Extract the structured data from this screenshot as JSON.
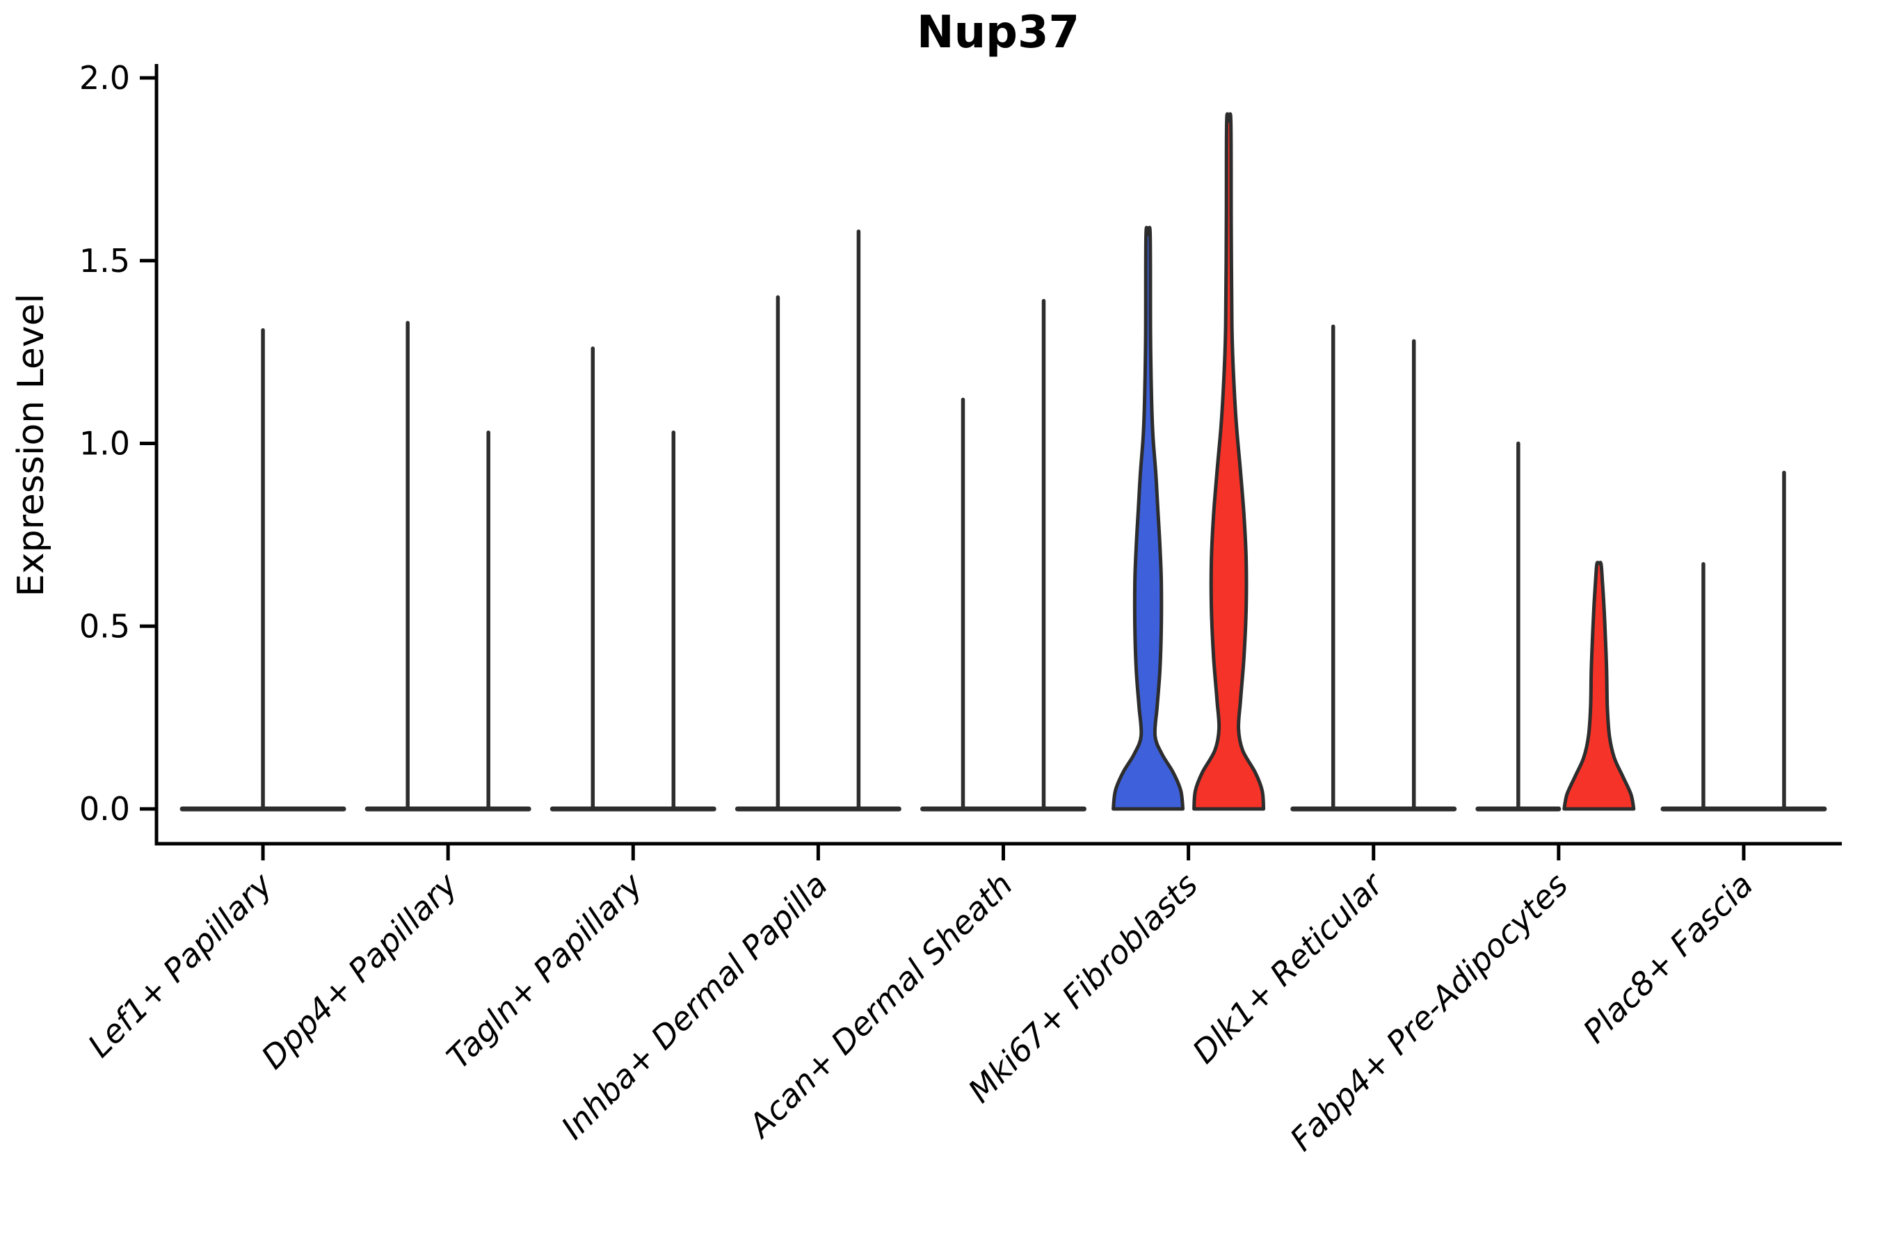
{
  "chart_data": {
    "type": "violin",
    "title": "Nup37",
    "xlabel": "",
    "ylabel": "Expression Level",
    "ylim": [
      0.0,
      2.0
    ],
    "yticks": [
      "0.0",
      "0.5",
      "1.0",
      "1.5",
      "2.0"
    ],
    "ytick_values": [
      0.0,
      0.5,
      1.0,
      1.5,
      2.0
    ],
    "legend": "none",
    "grid": false,
    "categories": [
      "Lef1+ Papillary",
      "Dpp4+ Papillary",
      "Tagln+ Papillary",
      "Inhba+ Dermal Papilla",
      "Acan+ Dermal Sheath",
      "Mki67+ Fibroblasts",
      "Dlk1+ Reticular",
      "Fabp4+ Pre-Adipocytes",
      "Plac8+ Fascia"
    ],
    "colors": {
      "outline": "#2d2d2d",
      "spike": "#2d2d2d",
      "axis": "#000000",
      "blue_fill": "#3e61db",
      "red_fill": "#f63328"
    },
    "groups": [
      {
        "category": "Lef1+ Papillary",
        "violins": [
          {
            "position": "center",
            "style": "spike",
            "height": 1.31,
            "fill": "none",
            "width_scale": 2
          }
        ]
      },
      {
        "category": "Dpp4+ Papillary",
        "violins": [
          {
            "position": "left",
            "style": "spike",
            "height": 1.33,
            "fill": "none",
            "width_scale": 1
          },
          {
            "position": "right",
            "style": "spike",
            "height": 1.03,
            "fill": "none",
            "width_scale": 1
          }
        ]
      },
      {
        "category": "Tagln+ Papillary",
        "violins": [
          {
            "position": "left",
            "style": "spike",
            "height": 1.26,
            "fill": "none",
            "width_scale": 1
          },
          {
            "position": "right",
            "style": "spike",
            "height": 1.03,
            "fill": "none",
            "width_scale": 1
          }
        ]
      },
      {
        "category": "Inhba+ Dermal Papilla",
        "violins": [
          {
            "position": "left",
            "style": "spike",
            "height": 1.4,
            "fill": "none",
            "width_scale": 1
          },
          {
            "position": "right",
            "style": "spike",
            "height": 1.58,
            "fill": "none",
            "width_scale": 1
          }
        ]
      },
      {
        "category": "Acan+ Dermal Sheath",
        "violins": [
          {
            "position": "left",
            "style": "spike",
            "height": 1.12,
            "fill": "none",
            "width_scale": 1
          },
          {
            "position": "right",
            "style": "spike",
            "height": 1.39,
            "fill": "none",
            "width_scale": 1
          }
        ]
      },
      {
        "category": "Mki67+ Fibroblasts",
        "violins": [
          {
            "position": "left",
            "style": "filled",
            "height": 1.57,
            "fill": "#3e61db",
            "width_scale": 1,
            "profile": [
              [
                0.0,
                50
              ],
              [
                0.05,
                47
              ],
              [
                0.1,
                36
              ],
              [
                0.15,
                20
              ],
              [
                0.2,
                10
              ],
              [
                0.28,
                13
              ],
              [
                0.38,
                17
              ],
              [
                0.5,
                19
              ],
              [
                0.62,
                19
              ],
              [
                0.72,
                17
              ],
              [
                0.82,
                14
              ],
              [
                0.92,
                11
              ],
              [
                1.02,
                7
              ],
              [
                1.12,
                5
              ],
              [
                1.3,
                3.5
              ],
              [
                1.57,
                3
              ]
            ]
          },
          {
            "position": "right",
            "style": "filled",
            "height": 1.88,
            "fill": "#f63328",
            "width_scale": 1,
            "profile": [
              [
                0.0,
                50
              ],
              [
                0.05,
                48
              ],
              [
                0.1,
                38
              ],
              [
                0.16,
                20
              ],
              [
                0.22,
                14
              ],
              [
                0.3,
                17
              ],
              [
                0.42,
                22
              ],
              [
                0.55,
                25
              ],
              [
                0.68,
                25
              ],
              [
                0.8,
                22
              ],
              [
                0.92,
                17
              ],
              [
                1.05,
                11
              ],
              [
                1.18,
                7
              ],
              [
                1.32,
                4.5
              ],
              [
                1.6,
                3.5
              ],
              [
                1.88,
                3
              ]
            ]
          }
        ]
      },
      {
        "category": "Dlk1+ Reticular",
        "violins": [
          {
            "position": "left",
            "style": "spike",
            "height": 1.32,
            "fill": "none",
            "width_scale": 1
          },
          {
            "position": "right",
            "style": "spike",
            "height": 1.28,
            "fill": "none",
            "width_scale": 1
          }
        ]
      },
      {
        "category": "Fabp4+ Pre-Adipocytes",
        "violins": [
          {
            "position": "left",
            "style": "spike",
            "height": 1.0,
            "fill": "none",
            "width_scale": 1
          },
          {
            "position": "right",
            "style": "filled",
            "height": 0.67,
            "fill": "#f63328",
            "width_scale": 1,
            "profile": [
              [
                0.0,
                50
              ],
              [
                0.04,
                46
              ],
              [
                0.09,
                34
              ],
              [
                0.14,
                22
              ],
              [
                0.2,
                15
              ],
              [
                0.28,
                12
              ],
              [
                0.38,
                11
              ],
              [
                0.48,
                9
              ],
              [
                0.56,
                7
              ],
              [
                0.62,
                5
              ],
              [
                0.67,
                3
              ]
            ]
          }
        ]
      },
      {
        "category": "Plac8+ Fascia",
        "violins": [
          {
            "position": "left",
            "style": "spike",
            "height": 0.67,
            "fill": "none",
            "width_scale": 1
          },
          {
            "position": "right",
            "style": "spike",
            "height": 0.92,
            "fill": "none",
            "width_scale": 1
          }
        ]
      }
    ]
  }
}
